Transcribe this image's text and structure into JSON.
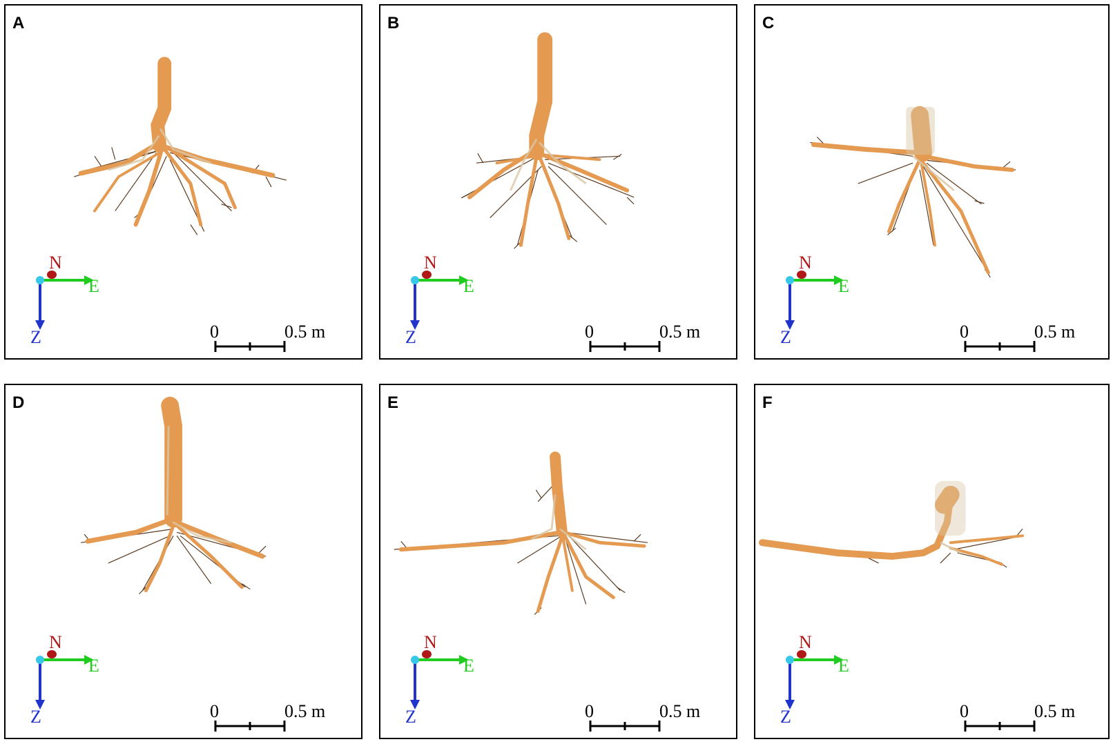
{
  "panels": [
    {
      "letter": "A"
    },
    {
      "letter": "B"
    },
    {
      "letter": "C"
    },
    {
      "letter": "D"
    },
    {
      "letter": "E"
    },
    {
      "letter": "F"
    }
  ],
  "compass": {
    "north": "N",
    "east": "E",
    "depth": "Z"
  },
  "scale_bar": {
    "start_label": "0",
    "end_label": "0.5 m",
    "start_value": 0,
    "end_value": 0.5,
    "unit": "m"
  },
  "colors": {
    "root_light": "#e59a52",
    "root_dark": "#5a3a20",
    "root_pale": "#d9c7a6",
    "north_arrow": "#b01818",
    "east_arrow": "#1fcc1f",
    "depth_arrow": "#2233cc"
  }
}
